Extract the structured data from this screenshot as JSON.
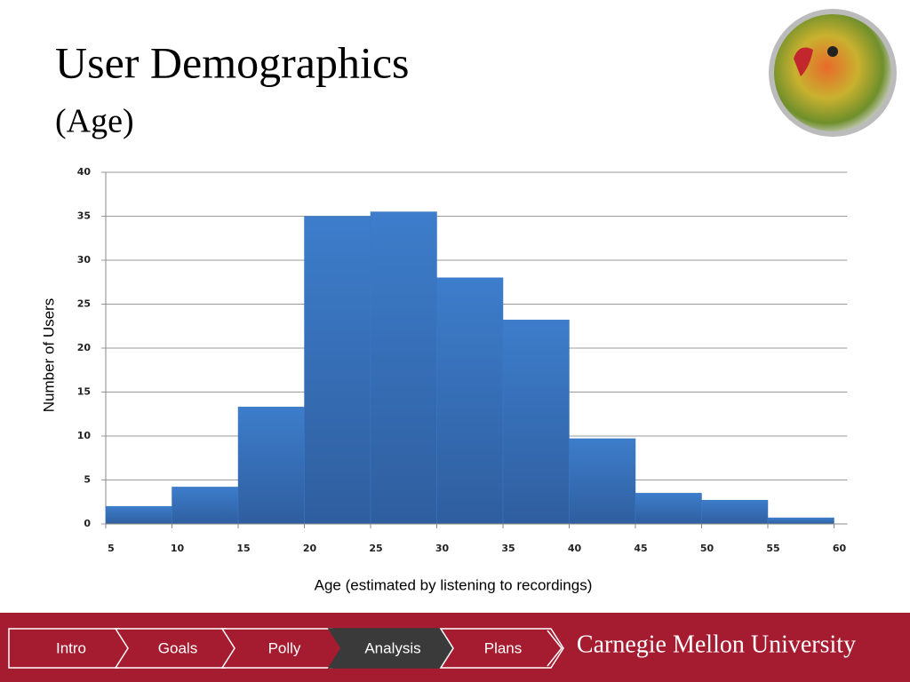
{
  "slide": {
    "title": "User Demographics",
    "subtitle": "(Age)"
  },
  "chart_data": {
    "type": "histogram",
    "y_label": "Number of Users",
    "x_label": "Age (estimated by listening to recordings)",
    "bins": [
      5,
      10,
      15,
      20,
      25,
      30,
      35,
      40,
      45,
      50,
      55,
      60
    ],
    "values": [
      2,
      4.2,
      13.3,
      35,
      35.5,
      28,
      23.2,
      9.7,
      3.5,
      2.7,
      0.7
    ],
    "color": "#3b78c4",
    "xlim": [
      5,
      61
    ],
    "xticks": [
      5,
      10,
      15,
      20,
      25,
      30,
      35,
      40,
      45,
      50,
      55,
      60
    ],
    "ylim": [
      0,
      40
    ],
    "yticks": [
      0,
      5,
      10,
      15,
      20,
      25,
      30,
      35,
      40
    ],
    "grid": true
  },
  "nav": {
    "items": [
      "Intro",
      "Goals",
      "Polly",
      "Analysis",
      "Plans"
    ],
    "active": 3
  },
  "footer": {
    "brand": "Carnegie Mellon University"
  }
}
